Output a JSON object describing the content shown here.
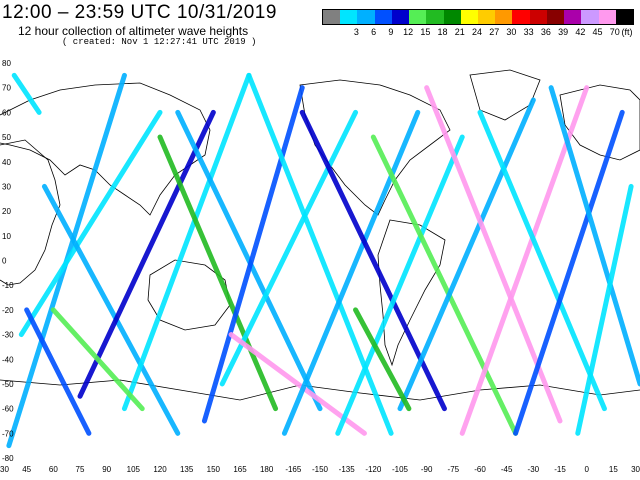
{
  "header": {
    "title": "12:00 – 23:59 UTC 10/31/2019",
    "subtitle": "12 hour collection of altimeter wave heights",
    "created": "( created: Nov 1 12:27:41 UTC 2019 )"
  },
  "legend": {
    "unit": "(ft)",
    "items": [
      {
        "label": "",
        "color": "#808080"
      },
      {
        "label": "3",
        "color": "#00e5ff"
      },
      {
        "label": "6",
        "color": "#00b0ff"
      },
      {
        "label": "9",
        "color": "#0050ff"
      },
      {
        "label": "12",
        "color": "#0000cc"
      },
      {
        "label": "15",
        "color": "#55ee55"
      },
      {
        "label": "18",
        "color": "#22bb22"
      },
      {
        "label": "21",
        "color": "#008800"
      },
      {
        "label": "24",
        "color": "#ffff00"
      },
      {
        "label": "27",
        "color": "#ffcc00"
      },
      {
        "label": "30",
        "color": "#ff9900"
      },
      {
        "label": "33",
        "color": "#ff0000"
      },
      {
        "label": "36",
        "color": "#cc0000"
      },
      {
        "label": "39",
        "color": "#880000"
      },
      {
        "label": "42",
        "color": "#aa00aa"
      },
      {
        "label": "45",
        "color": "#cc99ff"
      },
      {
        "label": "70",
        "color": "#ff99ee"
      },
      {
        "label": "",
        "color": "#000000"
      }
    ]
  },
  "map": {
    "lat_labels": [
      "80",
      "70",
      "60",
      "50",
      "40",
      "30",
      "20",
      "10",
      "0",
      "-10",
      "-20",
      "-30",
      "-40",
      "-50",
      "-60",
      "-70",
      "-80"
    ],
    "lon_labels": [
      "30",
      "45",
      "60",
      "75",
      "90",
      "105",
      "120",
      "135",
      "150",
      "165",
      "180",
      "-165",
      "-150",
      "-135",
      "-120",
      "-105",
      "-90",
      "-75",
      "-60",
      "-45",
      "-30",
      "-15",
      "0",
      "15",
      "30"
    ],
    "tracks": [
      {
        "lon": [
          35,
          100
        ],
        "lat": [
          -75,
          75
        ],
        "color": "#00b0ff"
      },
      {
        "lon": [
          38,
          52
        ],
        "lat": [
          75,
          60
        ],
        "color": "#00e5ff"
      },
      {
        "lon": [
          42,
          120
        ],
        "lat": [
          -30,
          60
        ],
        "color": "#00e5ff"
      },
      {
        "lon": [
          45,
          80
        ],
        "lat": [
          -20,
          -70
        ],
        "color": "#0050ff"
      },
      {
        "lon": [
          55,
          130
        ],
        "lat": [
          30,
          -70
        ],
        "color": "#00b0ff"
      },
      {
        "lon": [
          75,
          150
        ],
        "lat": [
          -55,
          60
        ],
        "color": "#0000cc"
      },
      {
        "lon": [
          100,
          170
        ],
        "lat": [
          -60,
          75
        ],
        "color": "#00e5ff"
      },
      {
        "lon": [
          120,
          185
        ],
        "lat": [
          50,
          -60
        ],
        "color": "#22bb22"
      },
      {
        "lon": [
          130,
          210
        ],
        "lat": [
          60,
          -60
        ],
        "color": "#00b0ff"
      },
      {
        "lon": [
          145,
          200
        ],
        "lat": [
          -65,
          70
        ],
        "color": "#0050ff"
      },
      {
        "lon": [
          155,
          230
        ],
        "lat": [
          -50,
          60
        ],
        "color": "#00e5ff"
      },
      {
        "lon": [
          160,
          235
        ],
        "lat": [
          -30,
          -70
        ],
        "color": "#ff99ee"
      },
      {
        "lon": [
          170,
          250
        ],
        "lat": [
          75,
          -70
        ],
        "color": "#00e5ff"
      },
      {
        "lon": [
          190,
          265
        ],
        "lat": [
          -70,
          60
        ],
        "color": "#00b0ff"
      },
      {
        "lon": [
          200,
          280
        ],
        "lat": [
          60,
          -60
        ],
        "color": "#0000cc"
      },
      {
        "lon": [
          220,
          290
        ],
        "lat": [
          -70,
          50
        ],
        "color": "#00e5ff"
      },
      {
        "lon": [
          240,
          320
        ],
        "lat": [
          50,
          -70
        ],
        "color": "#55ee55"
      },
      {
        "lon": [
          255,
          330
        ],
        "lat": [
          -60,
          65
        ],
        "color": "#00b0ff"
      },
      {
        "lon": [
          270,
          345
        ],
        "lat": [
          70,
          -65
        ],
        "color": "#ff99ee"
      },
      {
        "lon": [
          290,
          360
        ],
        "lat": [
          -70,
          70
        ],
        "color": "#ff99ee"
      },
      {
        "lon": [
          300,
          370
        ],
        "lat": [
          60,
          -60
        ],
        "color": "#00e5ff"
      },
      {
        "lon": [
          320,
          380
        ],
        "lat": [
          -70,
          60
        ],
        "color": "#0050ff"
      },
      {
        "lon": [
          340,
          390
        ],
        "lat": [
          70,
          -50
        ],
        "color": "#00b0ff"
      },
      {
        "lon": [
          355,
          385
        ],
        "lat": [
          -70,
          30
        ],
        "color": "#00e5ff"
      },
      {
        "lon": [
          60,
          110
        ],
        "lat": [
          -20,
          -60
        ],
        "color": "#55ee55"
      },
      {
        "lon": [
          230,
          260
        ],
        "lat": [
          -20,
          -60
        ],
        "color": "#22bb22"
      }
    ]
  }
}
